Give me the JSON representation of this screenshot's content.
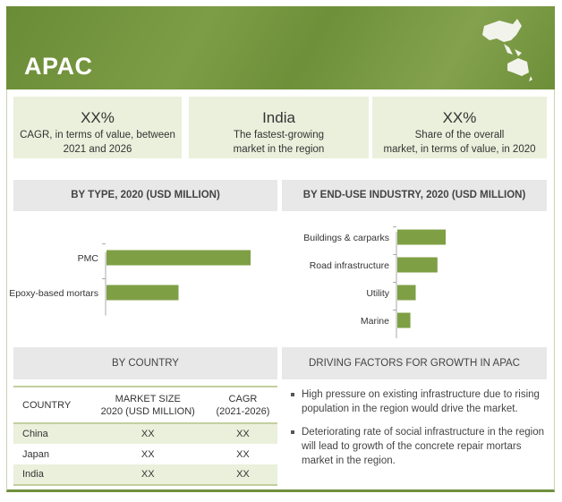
{
  "header": {
    "title": "APAC"
  },
  "kpis": [
    {
      "value": "XX%",
      "line1": "CAGR, in terms of value, between",
      "line2": "2021 and 2026"
    },
    {
      "value": "India",
      "line1": "The fastest-growing",
      "line2": "market in the region"
    },
    {
      "value": "XX%",
      "line1": "Share of the overall",
      "line2": "market, in terms of value, in 2020"
    }
  ],
  "colors": {
    "accent": "#7a9a42",
    "bar": "#7f9f45",
    "light": "#ebf0dc"
  },
  "chart_data": [
    {
      "type": "bar",
      "orientation": "horizontal",
      "title": "BY TYPE, 2020 (USD MILLION)",
      "categories": [
        "PMC",
        "Epoxy-based mortars"
      ],
      "values": [
        100,
        50
      ]
    },
    {
      "type": "bar",
      "orientation": "horizontal",
      "title": "BY END-USE INDUSTRY, 2020 (USD MILLION)",
      "categories": [
        "Buildings & carparks",
        "Road infrastructure",
        "Utility",
        "Marine"
      ],
      "values": [
        100,
        83,
        38,
        27
      ]
    }
  ],
  "country": {
    "title": "BY COUNTRY",
    "headers": [
      "COUNTRY",
      "MARKET SIZE\n2020 (USD MILLION)",
      "CAGR\n(2021-2026)"
    ],
    "rows": [
      [
        "China",
        "XX",
        "XX"
      ],
      [
        "Japan",
        "XX",
        "XX"
      ],
      [
        "India",
        "XX",
        "XX"
      ]
    ]
  },
  "drivers": {
    "title": "DRIVING FACTORS FOR GROWTH IN APAC",
    "items": [
      "High pressure on existing infrastructure due to rising population in the region would drive the market.",
      "Deteriorating rate of social infrastructure in the region will lead to growth of the concrete repair mortars market in the region."
    ]
  }
}
